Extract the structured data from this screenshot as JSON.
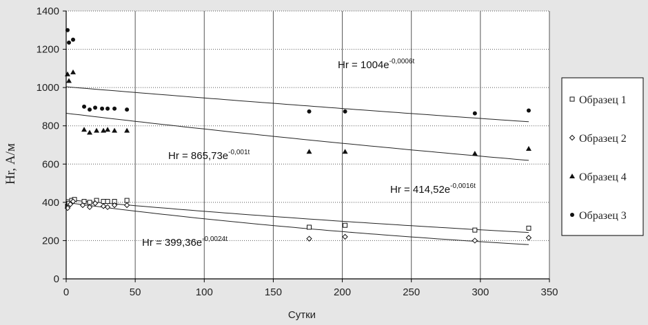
{
  "chart_data": {
    "type": "scatter",
    "xlabel": "Сутки",
    "ylabel": "Hr, А/м",
    "xlim": [
      0,
      350
    ],
    "ylim": [
      0,
      1400
    ],
    "xticks": [
      "0",
      "50",
      "100",
      "150",
      "200",
      "250",
      "300",
      "350"
    ],
    "yticks": [
      "0",
      "200",
      "400",
      "600",
      "800",
      "1000",
      "1200",
      "1400"
    ],
    "grid": "vertical solid, horizontal dotted",
    "legend_position": "right",
    "series": [
      {
        "name": "Образец 1",
        "marker": "square-open",
        "points": [
          [
            1,
            380
          ],
          [
            2,
            395
          ],
          [
            4,
            410
          ],
          [
            6,
            415
          ],
          [
            13,
            405
          ],
          [
            17,
            400
          ],
          [
            22,
            410
          ],
          [
            27,
            405
          ],
          [
            30,
            405
          ],
          [
            35,
            405
          ],
          [
            44,
            410
          ],
          [
            176,
            270
          ],
          [
            202,
            280
          ],
          [
            296,
            255
          ],
          [
            335,
            265
          ]
        ],
        "trend": {
          "a": 414.52,
          "b": -0.0016,
          "label_base": "Hr = 414,52e",
          "label_exp": "-0,0016t"
        }
      },
      {
        "name": "Образец 2",
        "marker": "diamond-open",
        "points": [
          [
            1,
            370
          ],
          [
            3,
            390
          ],
          [
            5,
            405
          ],
          [
            12,
            385
          ],
          [
            17,
            375
          ],
          [
            21,
            395
          ],
          [
            27,
            380
          ],
          [
            30,
            375
          ],
          [
            35,
            385
          ],
          [
            44,
            385
          ],
          [
            176,
            210
          ],
          [
            202,
            220
          ],
          [
            296,
            200
          ],
          [
            335,
            215
          ]
        ],
        "trend": {
          "a": 399.36,
          "b": -0.0024,
          "label_base": "Hr = 399,36e",
          "label_exp": "-0,0024t"
        }
      },
      {
        "name": "Образец 4",
        "marker": "triangle",
        "points": [
          [
            1,
            1070
          ],
          [
            2,
            1035
          ],
          [
            5,
            1080
          ],
          [
            13,
            780
          ],
          [
            17,
            765
          ],
          [
            22,
            775
          ],
          [
            27,
            775
          ],
          [
            30,
            780
          ],
          [
            35,
            775
          ],
          [
            44,
            775
          ],
          [
            176,
            665
          ],
          [
            202,
            665
          ],
          [
            296,
            655
          ],
          [
            335,
            680
          ]
        ],
        "trend": {
          "a": 865.73,
          "b": -0.001,
          "label_base": "Hr = 865,73e",
          "label_exp": "-0,001t"
        }
      },
      {
        "name": "Образец 3",
        "marker": "circle",
        "points": [
          [
            1,
            1300
          ],
          [
            2,
            1235
          ],
          [
            5,
            1250
          ],
          [
            13,
            900
          ],
          [
            17,
            885
          ],
          [
            21,
            895
          ],
          [
            26,
            890
          ],
          [
            30,
            890
          ],
          [
            35,
            890
          ],
          [
            44,
            885
          ],
          [
            176,
            875
          ],
          [
            202,
            875
          ],
          [
            296,
            865
          ],
          [
            335,
            880
          ]
        ],
        "trend": {
          "a": 1004,
          "b": -0.0006,
          "label_base": "Hr = 1004e",
          "label_exp": "-0,0006t"
        }
      }
    ]
  }
}
